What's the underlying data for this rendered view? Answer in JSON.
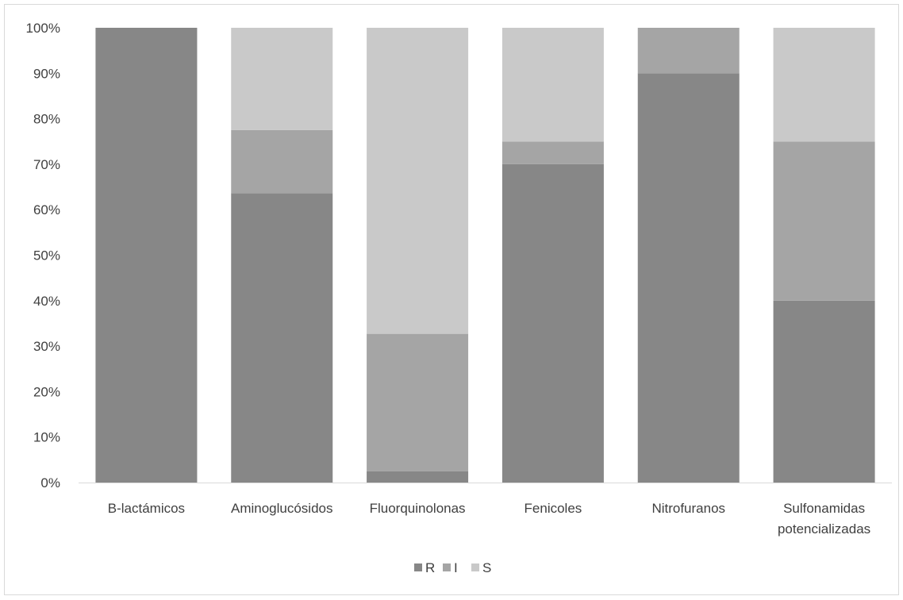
{
  "chart_data": {
    "type": "bar",
    "stacked": true,
    "normalized_percent": true,
    "categories": [
      "B-lactámicos",
      "Aminoglucósidos",
      "Fluorquinolonas",
      "Fenicoles",
      "Nitrofuranos",
      "Sulfonamidas potencializadas"
    ],
    "category_lines": [
      [
        "B-lactámicos"
      ],
      [
        "Aminoglucósidos"
      ],
      [
        "Fluorquinolonas"
      ],
      [
        "Fenicoles"
      ],
      [
        "Nitrofuranos"
      ],
      [
        "Sulfonamidas",
        "potencializadas"
      ]
    ],
    "series": [
      {
        "name": "R",
        "color": "#878787",
        "values": [
          100,
          63.6,
          2.5,
          70,
          90,
          40
        ]
      },
      {
        "name": "I",
        "color": "#a5a5a5",
        "values": [
          0,
          13.9,
          30.2,
          5,
          10,
          35
        ]
      },
      {
        "name": "S",
        "color": "#c9c9c9",
        "values": [
          0,
          22.5,
          67.3,
          25,
          0,
          25
        ]
      }
    ],
    "yticks": [
      "0%",
      "10%",
      "20%",
      "30%",
      "40%",
      "50%",
      "60%",
      "70%",
      "80%",
      "90%",
      "100%"
    ],
    "ylim": [
      0,
      100
    ],
    "title": "",
    "xlabel": "",
    "ylabel": "",
    "grid": false,
    "legend_position": "bottom",
    "axis_color": "#d9d9d9",
    "text_color": "#404040"
  }
}
